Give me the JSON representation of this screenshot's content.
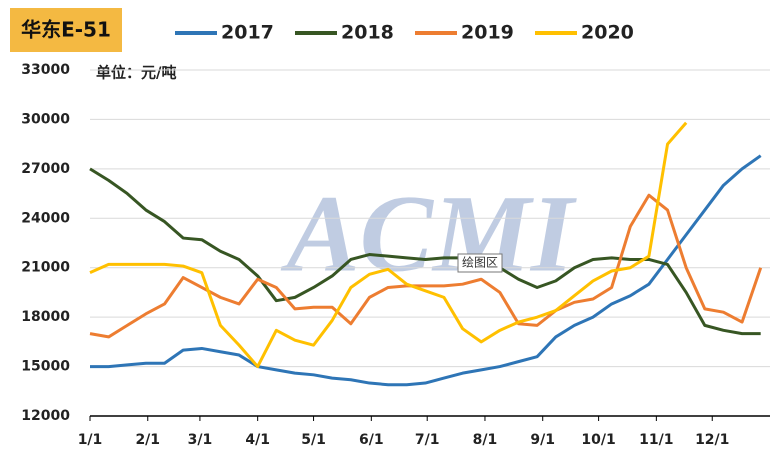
{
  "chart_data": {
    "type": "line",
    "title": "华东E-51",
    "unit_label": "单位：元/吨",
    "watermark": "ACMI",
    "plot_area_label": "绘图区",
    "x": [
      0,
      10,
      20,
      30,
      40,
      50,
      60,
      70,
      80,
      90,
      100,
      110,
      120,
      130,
      140,
      150,
      160,
      170,
      180,
      190,
      200,
      210,
      220,
      230,
      240,
      250,
      260,
      270,
      280,
      290,
      300,
      310,
      320,
      330,
      340,
      350,
      360
    ],
    "xlim": [
      0,
      365
    ],
    "xticks": [
      {
        "value": 0,
        "label": "1/1"
      },
      {
        "value": 31,
        "label": "2/1"
      },
      {
        "value": 59,
        "label": "3/1"
      },
      {
        "value": 90,
        "label": "4/1"
      },
      {
        "value": 120,
        "label": "5/1"
      },
      {
        "value": 151,
        "label": "6/1"
      },
      {
        "value": 181,
        "label": "7/1"
      },
      {
        "value": 212,
        "label": "8/1"
      },
      {
        "value": 243,
        "label": "9/1"
      },
      {
        "value": 273,
        "label": "10/1"
      },
      {
        "value": 304,
        "label": "11/1"
      },
      {
        "value": 334,
        "label": "12/1"
      }
    ],
    "ylim": [
      12000,
      33000
    ],
    "yticks": [
      12000,
      15000,
      18000,
      21000,
      24000,
      27000,
      30000,
      33000
    ],
    "grid": true,
    "series": [
      {
        "name": "2017",
        "color": "#2e75b6",
        "values": [
          15000,
          15000,
          15100,
          15200,
          15200,
          16000,
          16100,
          15900,
          15700,
          15000,
          14800,
          14600,
          14500,
          14300,
          14200,
          14000,
          13900,
          13900,
          14000,
          14300,
          14600,
          14800,
          15000,
          15300,
          15600,
          16800,
          17500,
          18000,
          18800,
          19300,
          20000,
          21500,
          23000,
          24500,
          26000,
          27000,
          27800
        ]
      },
      {
        "name": "2018",
        "color": "#375623",
        "values": [
          27000,
          26300,
          25500,
          24500,
          23800,
          22800,
          22700,
          22000,
          21500,
          20500,
          19000,
          19200,
          19800,
          20500,
          21500,
          21800,
          21700,
          21600,
          21500,
          21600,
          21600,
          21500,
          21000,
          20300,
          19800,
          20200,
          21000,
          21500,
          21600,
          21500,
          21500,
          21200,
          19500,
          17500,
          17200,
          17000,
          17000
        ]
      },
      {
        "name": "2019",
        "color": "#ed7d31",
        "values": [
          17000,
          16800,
          17500,
          18200,
          18800,
          20400,
          19800,
          19200,
          18800,
          20300,
          19800,
          18500,
          18600,
          18600,
          17600,
          19200,
          19800,
          19900,
          19900,
          19900,
          20000,
          20300,
          19500,
          17600,
          17500,
          18400,
          18900,
          19100,
          19800,
          23500,
          25400,
          24500,
          21000,
          18500,
          18300,
          17700,
          21000
        ]
      },
      {
        "name": "2020",
        "color": "#ffc000",
        "values": [
          20700,
          21200,
          21200,
          21200,
          21200,
          21100,
          20700,
          17500,
          16300,
          15000,
          17200,
          16600,
          16300,
          17800,
          19800,
          20600,
          20900,
          20000,
          19600,
          19200,
          17300,
          16500,
          17200,
          17700,
          18000,
          18400,
          19300,
          20200,
          20800,
          21000,
          21700,
          28500,
          29800,
          null,
          null,
          null,
          null
        ]
      }
    ]
  }
}
